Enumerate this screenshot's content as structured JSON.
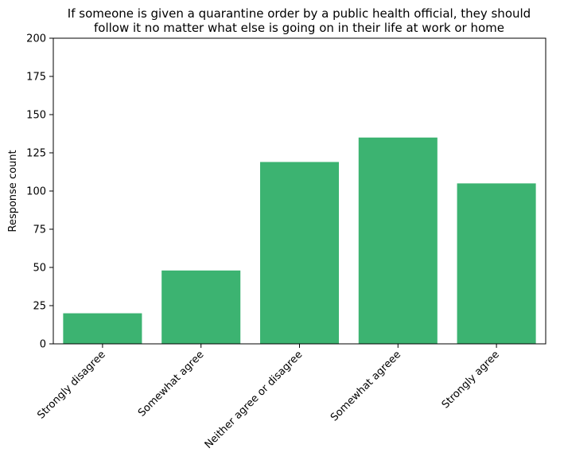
{
  "chart_data": {
    "type": "bar",
    "title_lines": [
      "If someone is given a quarantine order by a public health official, they should",
      "follow it no matter what else is going on in their life at work or home"
    ],
    "xlabel": "",
    "ylabel": "Response count",
    "categories": [
      "Strongly disagree",
      "Somewhat agree",
      "Neither agree or disagree",
      "Somewhat agreee",
      "Strongly agree"
    ],
    "values": [
      20,
      48,
      119,
      135,
      105
    ],
    "ylim": [
      0,
      200
    ],
    "yticks": [
      0,
      25,
      50,
      75,
      100,
      125,
      150,
      175,
      200
    ],
    "bar_color": "#3cb371",
    "grid": false,
    "legend": "none"
  }
}
